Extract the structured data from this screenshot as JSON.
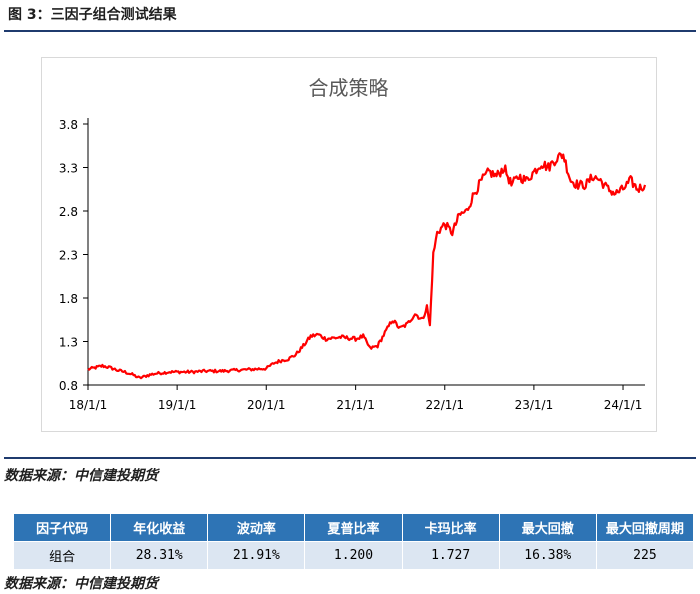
{
  "figure": {
    "title": "图 3：三因子组合测试结果",
    "source_top": "数据来源：中信建投期货",
    "source_bottom": "数据来源：中信建投期货"
  },
  "colors": {
    "line": "#ff0000",
    "rule": "#1f3b6e",
    "header_bg": "#2e74b5",
    "row_bg": "#dce6f2"
  },
  "chart_data": {
    "type": "line",
    "title": "合成策略",
    "x_ticks": [
      "18/1/1",
      "19/1/1",
      "20/1/1",
      "21/1/1",
      "22/1/1",
      "23/1/1",
      "24/1/1"
    ],
    "y_ticks": [
      "0.8",
      "1.3",
      "1.8",
      "2.3",
      "2.8",
      "3.3",
      "3.8"
    ],
    "ylim": [
      0.8,
      3.8
    ],
    "xlim": [
      "2018-01-01",
      "2024-03-31"
    ],
    "grid": false,
    "legend": "none",
    "series": [
      {
        "x": [
          "2018-01-01",
          "2018-02-01",
          "2018-03-01",
          "2018-04-01",
          "2018-05-01",
          "2018-06-01",
          "2018-07-01",
          "2018-08-01",
          "2018-09-01",
          "2018-10-01",
          "2018-11-01",
          "2018-12-01",
          "2019-01-01",
          "2019-03-01",
          "2019-05-01",
          "2019-07-01",
          "2019-09-01",
          "2019-11-01",
          "2020-01-01",
          "2020-02-01",
          "2020-03-01",
          "2020-04-01",
          "2020-05-01",
          "2020-06-01",
          "2020-07-01",
          "2020-08-01",
          "2020-09-01",
          "2020-10-01",
          "2020-11-01",
          "2020-12-01",
          "2021-01-01",
          "2021-02-01",
          "2021-03-01",
          "2021-04-01",
          "2021-05-01",
          "2021-06-01",
          "2021-07-01",
          "2021-08-01",
          "2021-09-01",
          "2021-10-01",
          "2021-10-20",
          "2021-11-01",
          "2021-11-15",
          "2021-12-01",
          "2022-01-01",
          "2022-02-01",
          "2022-03-01",
          "2022-04-01",
          "2022-05-01",
          "2022-06-01",
          "2022-07-01",
          "2022-08-01",
          "2022-09-01",
          "2022-10-01",
          "2022-11-01",
          "2022-12-01",
          "2023-01-01",
          "2023-02-01",
          "2023-03-01",
          "2023-04-01",
          "2023-05-01",
          "2023-06-01",
          "2023-07-01",
          "2023-08-01",
          "2023-09-01",
          "2023-10-01",
          "2023-11-01",
          "2023-12-01",
          "2024-01-01",
          "2024-02-01",
          "2024-03-01",
          "2024-03-31"
        ],
        "y": [
          0.98,
          1.0,
          1.02,
          1.0,
          0.97,
          0.95,
          0.92,
          0.88,
          0.91,
          0.93,
          0.94,
          0.95,
          0.95,
          0.95,
          0.96,
          0.96,
          0.97,
          0.98,
          0.99,
          1.05,
          1.08,
          1.1,
          1.15,
          1.25,
          1.36,
          1.38,
          1.33,
          1.34,
          1.35,
          1.34,
          1.33,
          1.36,
          1.22,
          1.25,
          1.4,
          1.55,
          1.45,
          1.5,
          1.62,
          1.55,
          1.7,
          1.48,
          2.3,
          2.55,
          2.65,
          2.55,
          2.75,
          2.8,
          3.0,
          3.15,
          3.25,
          3.2,
          3.3,
          3.1,
          3.2,
          3.15,
          3.25,
          3.35,
          3.3,
          3.4,
          3.45,
          3.15,
          3.1,
          3.1,
          3.2,
          3.15,
          3.05,
          3.0,
          3.05,
          3.15,
          3.05,
          3.1
        ]
      }
    ]
  },
  "table": {
    "headers": [
      "因子代码",
      "年化收益",
      "波动率",
      "夏普比率",
      "卡玛比率",
      "最大回撤",
      "最大回撤周期"
    ],
    "rows": [
      [
        "组合",
        "28.31%",
        "21.91%",
        "1.200",
        "1.727",
        "16.38%",
        "225"
      ]
    ]
  }
}
